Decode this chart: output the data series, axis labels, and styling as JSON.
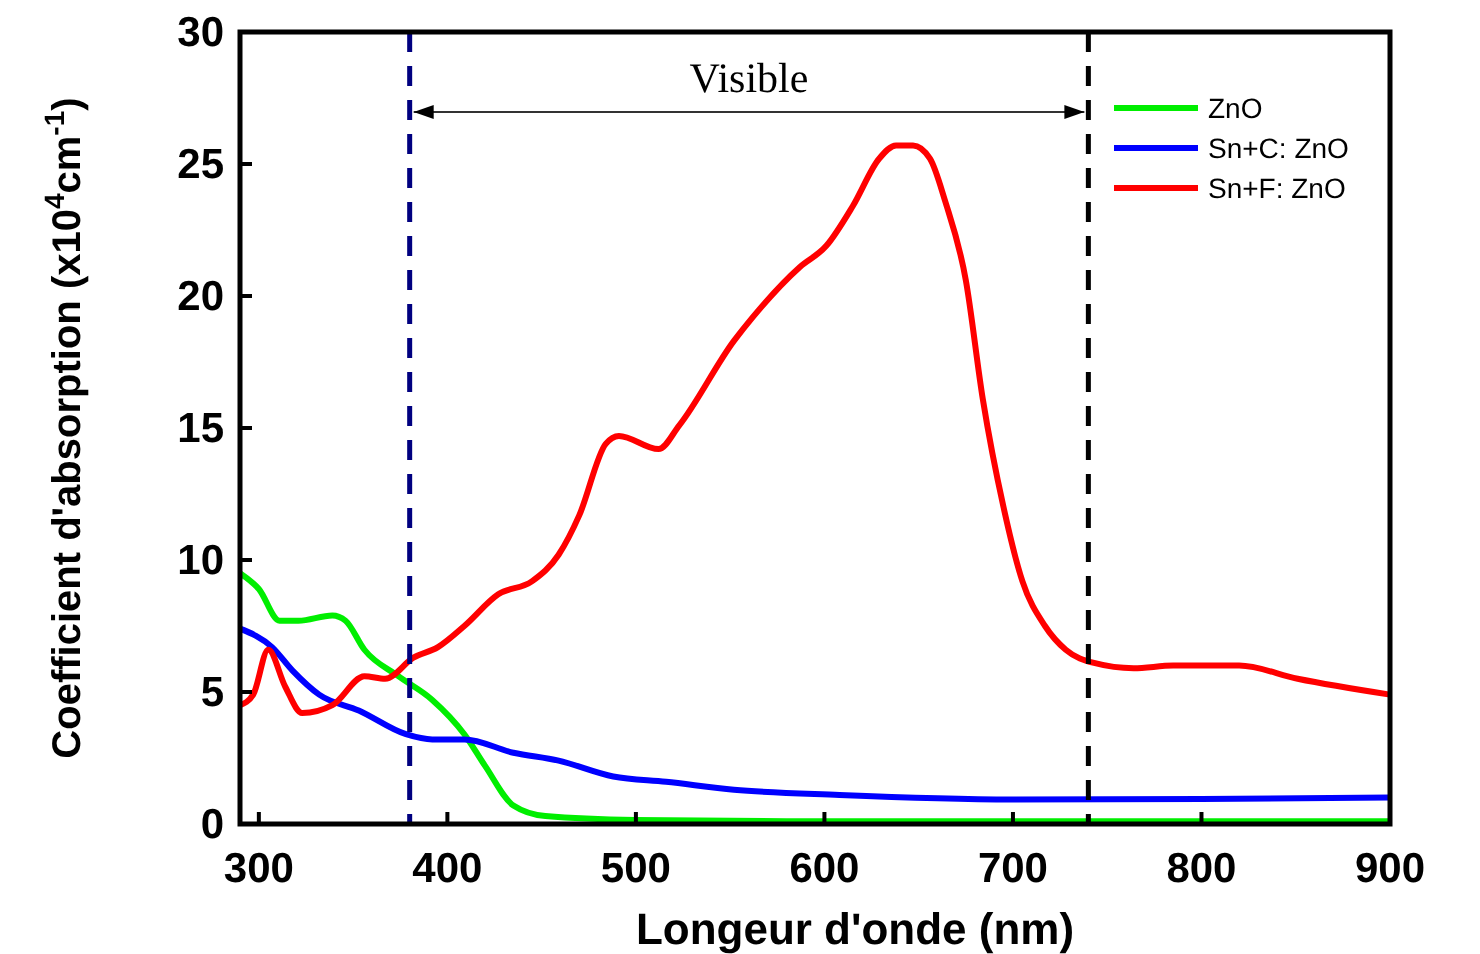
{
  "chart_data": {
    "type": "line",
    "xlabel": "Longeur d'onde (nm)",
    "ylabel": "Coefficient d'absorption (x10$^{4}$cm$^{-1}$)",
    "xlim": [
      290,
      900
    ],
    "ylim": [
      0,
      30
    ],
    "xticks": [
      300,
      400,
      500,
      600,
      700,
      800,
      900
    ],
    "yticks": [
      0,
      5,
      10,
      15,
      20,
      25,
      30
    ],
    "grid": false,
    "legend": "top right",
    "line_style": "solid",
    "marker": "none",
    "series": [
      {
        "name": "ZnO",
        "color": "#00ee00",
        "x": [
          290,
          300,
          311,
          321,
          339,
          346,
          356,
          374,
          392,
          409,
          420,
          435,
          452,
          500,
          600,
          700,
          800,
          900
        ],
        "values": [
          9.5,
          8.9,
          7.7,
          7.7,
          7.9,
          7.7,
          6.6,
          5.6,
          4.7,
          3.4,
          2.2,
          0.7,
          0.3,
          0.15,
          0.1,
          0.1,
          0.1,
          0.1
        ]
      },
      {
        "name": "Sn+C: ZnO",
        "color": "#0000ff",
        "x": [
          290,
          307,
          318,
          332,
          353,
          378,
          392,
          409,
          435,
          459,
          488,
          516,
          552,
          608,
          700,
          800,
          900
        ],
        "values": [
          7.4,
          6.7,
          5.8,
          4.9,
          4.3,
          3.4,
          3.2,
          3.2,
          2.7,
          2.4,
          1.8,
          1.6,
          1.3,
          1.1,
          0.93,
          0.95,
          1.0
        ]
      },
      {
        "name": "Sn+F: ZnO",
        "color": "#ff0000",
        "x": [
          290,
          297,
          305,
          314,
          323,
          339,
          356,
          367,
          382,
          395,
          409,
          427,
          445,
          459,
          470,
          484,
          491,
          512,
          523,
          552,
          562,
          587,
          601,
          615,
          629,
          638,
          647,
          656,
          664,
          675,
          684,
          695,
          705,
          717,
          728,
          743,
          764,
          785,
          806,
          820,
          851,
          900
        ],
        "values": [
          4.5,
          4.9,
          6.6,
          5.2,
          4.2,
          4.5,
          5.6,
          5.5,
          6.3,
          6.7,
          7.5,
          8.7,
          9.2,
          10.2,
          11.7,
          14.4,
          14.7,
          14.2,
          15.1,
          18.3,
          19.2,
          21.1,
          21.9,
          23.4,
          25.2,
          25.7,
          25.7,
          25.2,
          23.6,
          20.6,
          16.1,
          12.0,
          9.2,
          7.5,
          6.6,
          6.1,
          5.9,
          6.0,
          6.0,
          6.0,
          5.5,
          4.9
        ]
      }
    ],
    "ref_lines": [
      {
        "axis": "x",
        "value": 380,
        "color": "#000080",
        "line_style": "dashed"
      },
      {
        "axis": "x",
        "value": 740,
        "color": "#000000",
        "line_style": "dashed"
      }
    ],
    "annotations": [
      "Visible"
    ]
  }
}
